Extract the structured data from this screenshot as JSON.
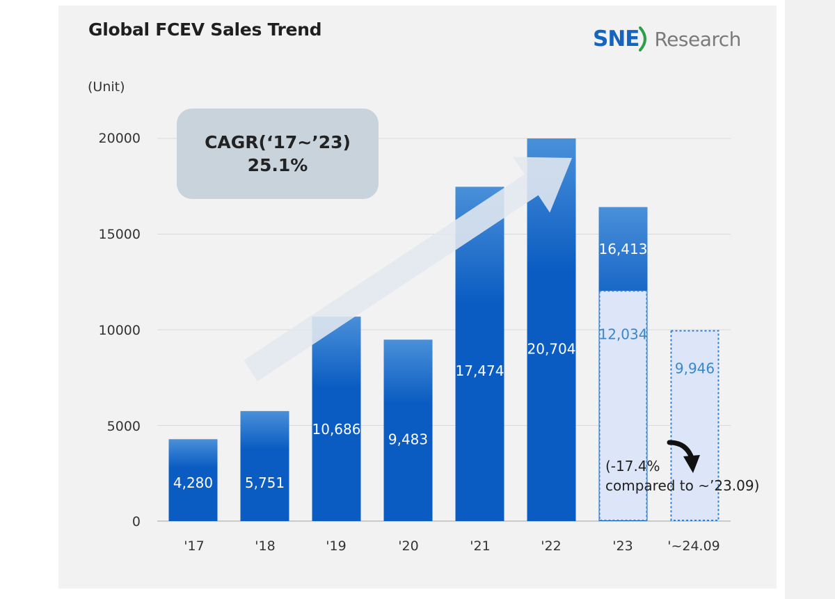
{
  "header": {
    "title": "Global FCEV Sales Trend",
    "logo_sne": "SNE",
    "logo_research": "Research",
    "unit_label": "(Unit)"
  },
  "callout": {
    "line1": "CAGR(‘17~’23)",
    "line2": "25.1%"
  },
  "note": {
    "line1": "(-17.4%",
    "line2": "compared to ~’23.09)"
  },
  "colors": {
    "bar_top": "#4a90d9",
    "bar_bottom": "#0a5cc2",
    "bar_outline_fill": "#dce6f8",
    "bar_outline_stroke": "#2f7fd6",
    "outline_label": "#3a86cc",
    "arrow": "#e2e8ef",
    "grid": "#d9d9d9"
  },
  "chart_data": {
    "type": "bar",
    "title": "Global FCEV Sales Trend",
    "ylabel": "(Unit)",
    "xlabel": "",
    "ylim": [
      0,
      20000
    ],
    "yticks": [
      0,
      5000,
      10000,
      15000,
      20000
    ],
    "grid": true,
    "categories": [
      "'17",
      "'18",
      "'19",
      "'20",
      "'21",
      "'22",
      "'23",
      "'~24.09"
    ],
    "series": [
      {
        "values": [
          4280,
          5751,
          10686,
          9483,
          17474,
          20704,
          16413,
          null
        ],
        "labels": [
          "4,280",
          "5,751",
          "10,686",
          "9,483",
          "17,474",
          "20,704",
          "16,413",
          ""
        ]
      },
      {
        "values": [
          null,
          null,
          null,
          null,
          null,
          null,
          12034,
          9946
        ],
        "labels": [
          "",
          "",
          "",
          "",
          "",
          "",
          "12,034",
          "9,946"
        ]
      }
    ]
  }
}
